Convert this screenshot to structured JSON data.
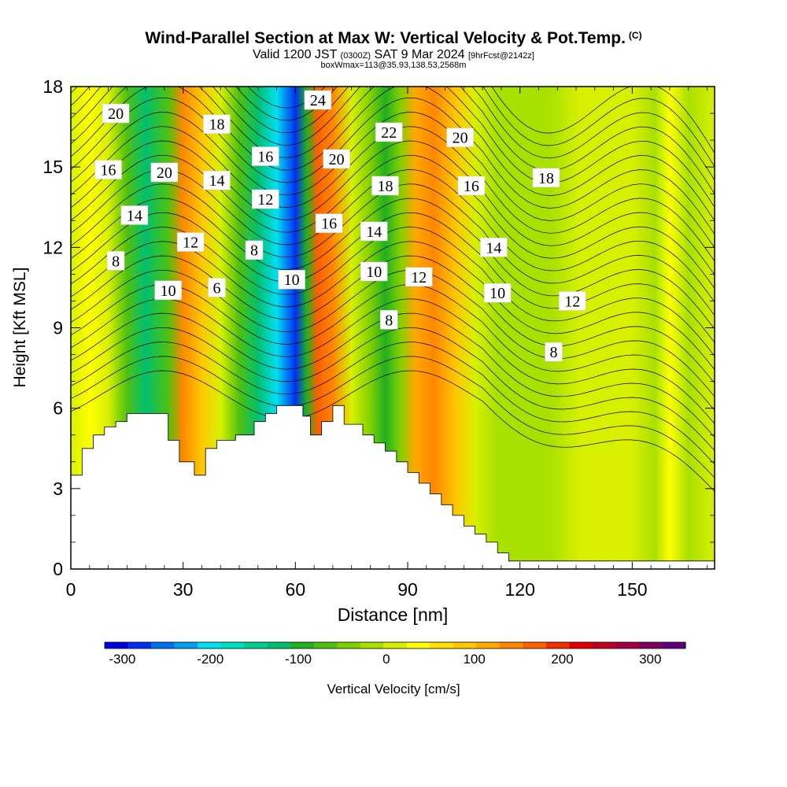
{
  "title": {
    "main": "Wind-Parallel Section at Max W: Vertical Velocity & Pot.Temp.",
    "copyright": "(C)",
    "valid_prefix": "Valid 1200 JST",
    "valid_utc": "(0300Z)",
    "valid_date": "SAT 9 Mar 2024",
    "forecast": "[9hrFcst@2142z]",
    "box": "boxWmax=113@35.93,138.53,2568m"
  },
  "chart_data": {
    "type": "heatmap",
    "xlabel": "Distance [nm]",
    "ylabel": "Height [Kft MSL]",
    "xlim": [
      0,
      172
    ],
    "ylim": [
      0,
      18
    ],
    "x_ticks": [
      0,
      30,
      60,
      90,
      120,
      150
    ],
    "y_ticks": [
      0,
      3,
      6,
      9,
      12,
      15,
      18
    ],
    "grid": false,
    "fill_variable": "Vertical Velocity [cm/s]",
    "colorbar": {
      "label": "Vertical Velocity [cm/s]",
      "ticks": [
        -300,
        -200,
        -100,
        0,
        100,
        200,
        300
      ],
      "range": [
        -320,
        340
      ],
      "colors": [
        "#0000e0",
        "#0030f0",
        "#0070f0",
        "#00a0f0",
        "#00e0f0",
        "#00e0c0",
        "#00d090",
        "#00c070",
        "#20b020",
        "#50c010",
        "#80d000",
        "#a8e000",
        "#d8f000",
        "#ffff00",
        "#ffe000",
        "#ffc800",
        "#ffa800",
        "#ff8800",
        "#ff6000",
        "#f03000",
        "#e00000",
        "#c00020",
        "#a00040",
        "#800060",
        "#600080"
      ]
    },
    "vertical_velocity_bands": [
      {
        "x": 0,
        "w": 5
      },
      {
        "x": 5,
        "w": 30
      },
      {
        "x": 10,
        "w": 15
      },
      {
        "x": 15,
        "w": -70
      },
      {
        "x": 20,
        "w": -110
      },
      {
        "x": 26,
        "w": -60
      },
      {
        "x": 30,
        "w": 130
      },
      {
        "x": 35,
        "w": 100
      },
      {
        "x": 40,
        "w": 20
      },
      {
        "x": 45,
        "w": -80
      },
      {
        "x": 50,
        "w": -120
      },
      {
        "x": 55,
        "w": -200
      },
      {
        "x": 60,
        "w": -280
      },
      {
        "x": 63,
        "w": -90
      },
      {
        "x": 66,
        "w": 160
      },
      {
        "x": 70,
        "w": 140
      },
      {
        "x": 75,
        "w": 10
      },
      {
        "x": 80,
        "w": -40
      },
      {
        "x": 84,
        "w": -90
      },
      {
        "x": 88,
        "w": -40
      },
      {
        "x": 92,
        "w": 110
      },
      {
        "x": 97,
        "w": 130
      },
      {
        "x": 103,
        "w": 80
      },
      {
        "x": 108,
        "w": 20
      },
      {
        "x": 114,
        "w": -15
      },
      {
        "x": 120,
        "w": -25
      },
      {
        "x": 128,
        "w": -20
      },
      {
        "x": 136,
        "w": 0
      },
      {
        "x": 142,
        "w": 20
      },
      {
        "x": 150,
        "w": 10
      },
      {
        "x": 156,
        "w": -10
      },
      {
        "x": 160,
        "w": 30
      },
      {
        "x": 165,
        "w": -20
      },
      {
        "x": 172,
        "w": 0
      }
    ],
    "terrain": {
      "x": [
        0,
        3,
        3,
        6,
        6,
        9,
        9,
        12,
        12,
        15,
        15,
        26,
        26,
        29,
        29,
        33,
        33,
        36,
        36,
        39,
        39,
        44,
        44,
        49,
        49,
        52,
        52,
        55,
        55,
        62,
        62,
        64,
        64,
        67,
        67,
        70,
        70,
        73,
        73,
        78,
        78,
        81,
        81,
        84,
        84,
        87,
        87,
        90,
        90,
        93,
        93,
        96,
        96,
        99,
        99,
        102,
        102,
        105,
        105,
        108,
        108,
        111,
        111,
        114,
        114,
        117,
        117,
        172
      ],
      "y": [
        3.5,
        3.5,
        4.5,
        4.5,
        5.0,
        5.0,
        5.3,
        5.3,
        5.5,
        5.5,
        5.8,
        5.8,
        4.8,
        4.8,
        4.0,
        4.0,
        3.5,
        3.5,
        4.5,
        4.5,
        4.8,
        4.8,
        5.0,
        5.0,
        5.5,
        5.5,
        5.8,
        5.8,
        6.1,
        6.1,
        5.7,
        5.7,
        5.0,
        5.0,
        5.5,
        5.5,
        6.1,
        6.1,
        5.4,
        5.4,
        5.0,
        5.0,
        4.7,
        4.7,
        4.4,
        4.4,
        4.0,
        4.0,
        3.6,
        3.6,
        3.2,
        3.2,
        2.8,
        2.8,
        2.4,
        2.4,
        2.0,
        2.0,
        1.6,
        1.6,
        1.3,
        1.3,
        1.0,
        1.0,
        0.6,
        0.6,
        0.3,
        0.3
      ]
    },
    "contour_labels": [
      {
        "text": "20",
        "x": 12,
        "y": 17.0
      },
      {
        "text": "16",
        "x": 10,
        "y": 14.9
      },
      {
        "text": "14",
        "x": 17,
        "y": 13.2
      },
      {
        "text": "8",
        "x": 12,
        "y": 11.5
      },
      {
        "text": "20",
        "x": 25,
        "y": 14.8
      },
      {
        "text": "18",
        "x": 39,
        "y": 16.6
      },
      {
        "text": "14",
        "x": 39,
        "y": 14.5
      },
      {
        "text": "12",
        "x": 32,
        "y": 12.2
      },
      {
        "text": "10",
        "x": 26,
        "y": 10.4
      },
      {
        "text": "6",
        "x": 39,
        "y": 10.5
      },
      {
        "text": "16",
        "x": 52,
        "y": 15.4
      },
      {
        "text": "12",
        "x": 52,
        "y": 13.8
      },
      {
        "text": "8",
        "x": 49,
        "y": 11.9
      },
      {
        "text": "10",
        "x": 59,
        "y": 10.8
      },
      {
        "text": "24",
        "x": 66,
        "y": 17.5
      },
      {
        "text": "20",
        "x": 71,
        "y": 15.3
      },
      {
        "text": "16",
        "x": 69,
        "y": 12.9
      },
      {
        "text": "22",
        "x": 85,
        "y": 16.3
      },
      {
        "text": "18",
        "x": 84,
        "y": 14.3
      },
      {
        "text": "14",
        "x": 81,
        "y": 12.6
      },
      {
        "text": "10",
        "x": 81,
        "y": 11.1
      },
      {
        "text": "12",
        "x": 93,
        "y": 10.9
      },
      {
        "text": "8",
        "x": 85,
        "y": 9.3
      },
      {
        "text": "20",
        "x": 104,
        "y": 16.1
      },
      {
        "text": "16",
        "x": 107,
        "y": 14.3
      },
      {
        "text": "14",
        "x": 113,
        "y": 12.0
      },
      {
        "text": "10",
        "x": 114,
        "y": 10.3
      },
      {
        "text": "18",
        "x": 127,
        "y": 14.6
      },
      {
        "text": "12",
        "x": 134,
        "y": 10.0
      },
      {
        "text": "8",
        "x": 129,
        "y": 8.1
      }
    ]
  }
}
